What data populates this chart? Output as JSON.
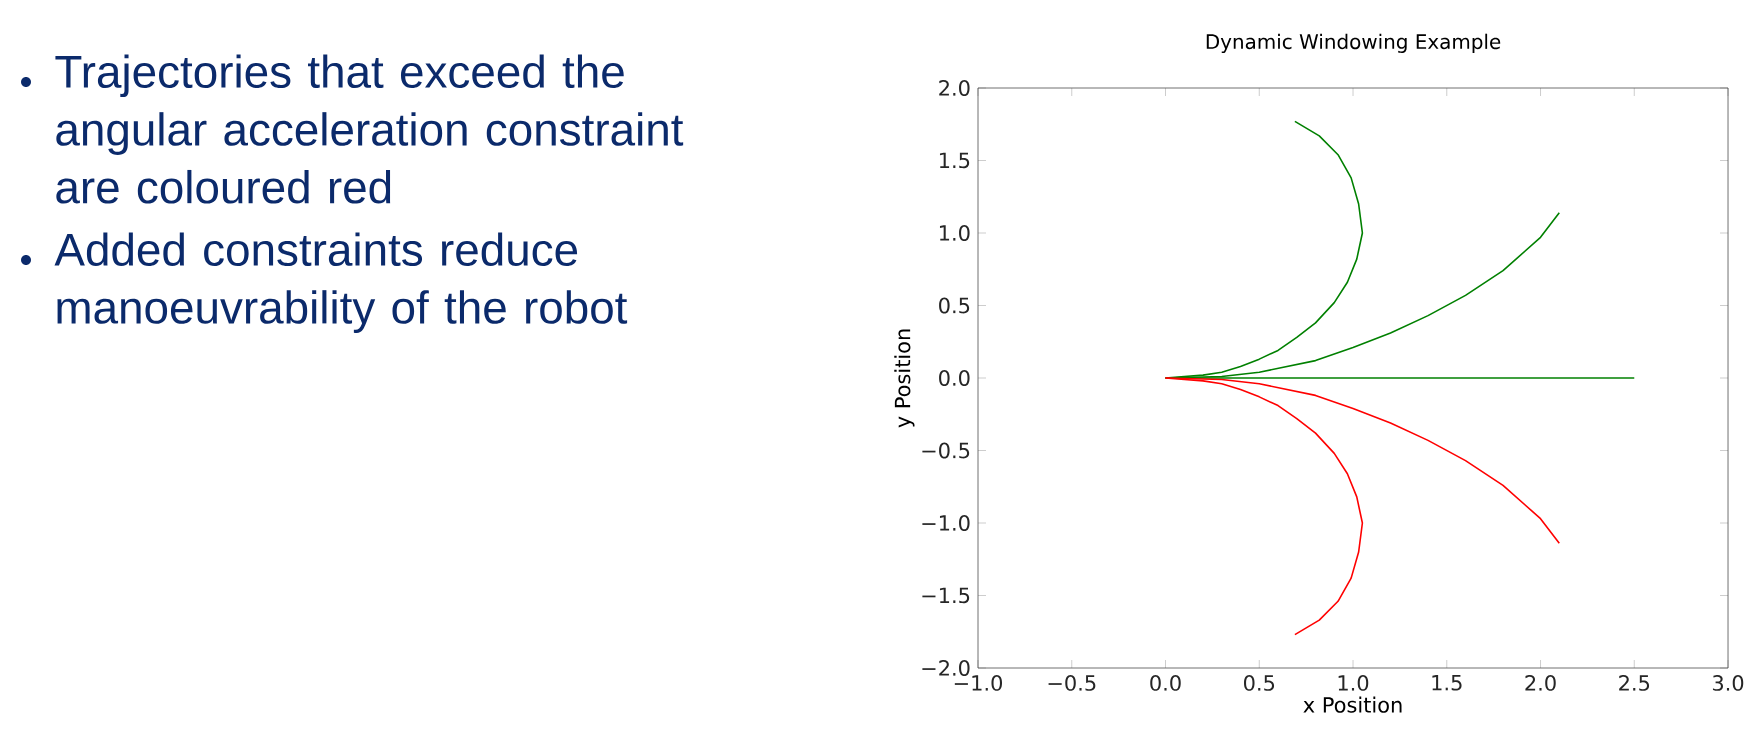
{
  "chart_data": {
    "type": "line",
    "title": "Dynamic Windowing Example",
    "xlabel": "x Position",
    "ylabel": "y Position",
    "annotations": [
      "Trajectories that exceed the angular acceleration constraint are coloured red",
      "Added constraints reduce manoeuvrability of the robot"
    ],
    "xlim": [
      -1,
      3
    ],
    "ylim": [
      -2,
      2
    ],
    "xticks": [
      {
        "value": -1,
        "label": "−1.0"
      },
      {
        "value": -0.5,
        "label": "−0.5"
      },
      {
        "value": 0,
        "label": "0.0"
      },
      {
        "value": 0.5,
        "label": "0.5"
      },
      {
        "value": 1,
        "label": "1.0"
      },
      {
        "value": 1.5,
        "label": "1.5"
      },
      {
        "value": 2,
        "label": "2.0"
      },
      {
        "value": 2.5,
        "label": "2.5"
      },
      {
        "value": 3,
        "label": "3.0"
      }
    ],
    "yticks": [
      {
        "value": -2,
        "label": "−2.0"
      },
      {
        "value": -1.5,
        "label": "−1.5"
      },
      {
        "value": -1,
        "label": "−1.0"
      },
      {
        "value": -0.5,
        "label": "−0.5"
      },
      {
        "value": 0,
        "label": "0.0"
      },
      {
        "value": 0.5,
        "label": "0.5"
      },
      {
        "value": 1,
        "label": "1.0"
      },
      {
        "value": 1.5,
        "label": "1.5"
      },
      {
        "value": 2,
        "label": "2.0"
      }
    ],
    "series": [
      {
        "color": "#008000",
        "x": [
          0,
          0.1,
          0.2,
          0.3,
          0.4,
          0.5,
          0.6,
          0.7,
          0.8,
          0.9,
          0.97,
          1.02,
          1.05,
          1.03,
          0.99,
          0.92,
          0.82,
          0.69
        ],
        "values": [
          0,
          0.01,
          0.02,
          0.04,
          0.08,
          0.13,
          0.19,
          0.28,
          0.38,
          0.52,
          0.66,
          0.82,
          1.0,
          1.2,
          1.38,
          1.54,
          1.67,
          1.77
        ]
      },
      {
        "color": "#008000",
        "x": [
          0,
          0.3,
          0.5,
          0.8,
          1.0,
          1.2,
          1.4,
          1.6,
          1.8,
          2.0,
          2.1
        ],
        "values": [
          0,
          0.01,
          0.04,
          0.12,
          0.21,
          0.31,
          0.43,
          0.57,
          0.74,
          0.97,
          1.14
        ]
      },
      {
        "color": "#008000",
        "x": [
          0,
          2.5
        ],
        "values": [
          0,
          0
        ]
      },
      {
        "color": "#ff0000",
        "x": [
          0,
          0.3,
          0.5,
          0.8,
          1.0,
          1.2,
          1.4,
          1.6,
          1.8,
          2.0,
          2.1
        ],
        "values": [
          0,
          -0.01,
          -0.04,
          -0.12,
          -0.21,
          -0.31,
          -0.43,
          -0.57,
          -0.74,
          -0.97,
          -1.14
        ]
      },
      {
        "color": "#ff0000",
        "x": [
          0,
          0.1,
          0.2,
          0.3,
          0.4,
          0.5,
          0.6,
          0.7,
          0.8,
          0.9,
          0.97,
          1.02,
          1.05,
          1.03,
          0.99,
          0.92,
          0.82,
          0.69
        ],
        "values": [
          0,
          -0.01,
          -0.02,
          -0.04,
          -0.08,
          -0.13,
          -0.19,
          -0.28,
          -0.38,
          -0.52,
          -0.66,
          -0.82,
          -1.0,
          -1.2,
          -1.38,
          -1.54,
          -1.67,
          -1.77
        ]
      }
    ]
  }
}
